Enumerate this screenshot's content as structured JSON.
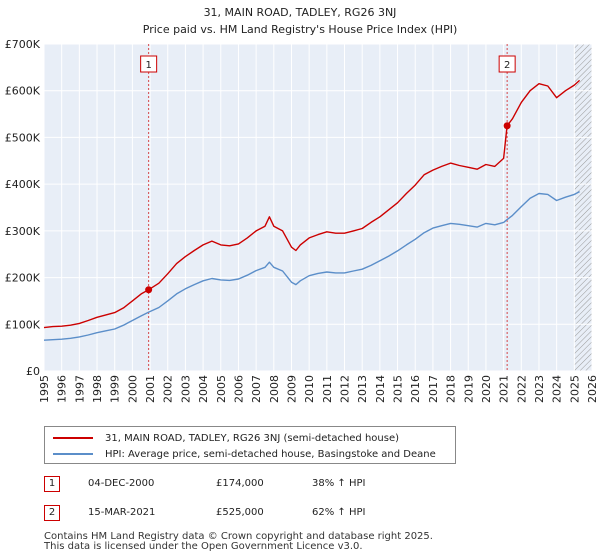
{
  "chart_data": {
    "type": "line",
    "title": "31, MAIN ROAD, TADLEY, RG26 3NJ",
    "subtitle": "Price paid vs. HM Land Registry's House Price Index (HPI)",
    "xlabel": "",
    "ylabel": "",
    "xlim": [
      1995,
      2026
    ],
    "ylim": [
      0,
      700000
    ],
    "grid": true,
    "x_ticks": [
      "1995",
      "1996",
      "1997",
      "1998",
      "1999",
      "2000",
      "2001",
      "2002",
      "2003",
      "2004",
      "2005",
      "2006",
      "2007",
      "2008",
      "2009",
      "2010",
      "2011",
      "2012",
      "2013",
      "2014",
      "2015",
      "2016",
      "2017",
      "2018",
      "2019",
      "2020",
      "2021",
      "2022",
      "2023",
      "2024",
      "2025",
      "2026"
    ],
    "y_ticks": [
      {
        "value": 0,
        "label": "£0"
      },
      {
        "value": 100000,
        "label": "£100K"
      },
      {
        "value": 200000,
        "label": "£200K"
      },
      {
        "value": 300000,
        "label": "£300K"
      },
      {
        "value": 400000,
        "label": "£400K"
      },
      {
        "value": 500000,
        "label": "£500K"
      },
      {
        "value": 600000,
        "label": "£600K"
      },
      {
        "value": 700000,
        "label": "£700K"
      }
    ],
    "series": [
      {
        "name": "31, MAIN ROAD, TADLEY, RG26 3NJ (semi-detached house)",
        "color": "#cc0000",
        "x": [
          1995.0,
          1995.5,
          1996.0,
          1996.5,
          1997.0,
          1997.5,
          1998.0,
          1998.5,
          1999.0,
          1999.5,
          2000.0,
          2000.5,
          2000.92,
          2001.5,
          2002.0,
          2002.5,
          2003.0,
          2003.5,
          2004.0,
          2004.5,
          2005.0,
          2005.5,
          2006.0,
          2006.5,
          2007.0,
          2007.5,
          2007.75,
          2008.0,
          2008.5,
          2009.0,
          2009.25,
          2009.5,
          2010.0,
          2010.5,
          2011.0,
          2011.5,
          2012.0,
          2012.5,
          2013.0,
          2013.5,
          2014.0,
          2014.5,
          2015.0,
          2015.5,
          2016.0,
          2016.5,
          2017.0,
          2017.5,
          2018.0,
          2018.5,
          2019.0,
          2019.5,
          2020.0,
          2020.5,
          2021.0,
          2021.2,
          2021.5,
          2022.0,
          2022.5,
          2023.0,
          2023.5,
          2024.0,
          2024.5,
          2025.0,
          2025.3
        ],
        "y": [
          93000,
          95000,
          96000,
          98000,
          102000,
          108000,
          115000,
          120000,
          125000,
          135000,
          150000,
          165000,
          174000,
          188000,
          208000,
          230000,
          245000,
          258000,
          270000,
          278000,
          270000,
          268000,
          272000,
          285000,
          300000,
          310000,
          330000,
          310000,
          300000,
          265000,
          258000,
          270000,
          285000,
          292000,
          298000,
          295000,
          295000,
          300000,
          305000,
          318000,
          330000,
          345000,
          360000,
          380000,
          398000,
          420000,
          430000,
          438000,
          445000,
          440000,
          436000,
          432000,
          442000,
          438000,
          455000,
          525000,
          540000,
          575000,
          600000,
          615000,
          610000,
          585000,
          600000,
          612000,
          622000
        ]
      },
      {
        "name": "HPI: Average price, semi-detached house, Basingstoke and Deane",
        "color": "#5b8ec9",
        "x": [
          1995.0,
          1995.5,
          1996.0,
          1996.5,
          1997.0,
          1997.5,
          1998.0,
          1998.5,
          1999.0,
          1999.5,
          2000.0,
          2000.5,
          2000.92,
          2001.5,
          2002.0,
          2002.5,
          2003.0,
          2003.5,
          2004.0,
          2004.5,
          2005.0,
          2005.5,
          2006.0,
          2006.5,
          2007.0,
          2007.5,
          2007.75,
          2008.0,
          2008.5,
          2009.0,
          2009.25,
          2009.5,
          2010.0,
          2010.5,
          2011.0,
          2011.5,
          2012.0,
          2012.5,
          2013.0,
          2013.5,
          2014.0,
          2014.5,
          2015.0,
          2015.5,
          2016.0,
          2016.5,
          2017.0,
          2017.5,
          2018.0,
          2018.5,
          2019.0,
          2019.5,
          2020.0,
          2020.5,
          2021.0,
          2021.2,
          2021.5,
          2022.0,
          2022.5,
          2023.0,
          2023.5,
          2024.0,
          2024.5,
          2025.0,
          2025.3
        ],
        "y": [
          66000,
          67000,
          68000,
          70000,
          73000,
          77000,
          82000,
          86000,
          90000,
          98000,
          108000,
          118000,
          126000,
          136000,
          150000,
          165000,
          176000,
          185000,
          193000,
          198000,
          195000,
          194000,
          197000,
          205000,
          215000,
          222000,
          233000,
          222000,
          214000,
          190000,
          185000,
          193000,
          204000,
          209000,
          212000,
          210000,
          210000,
          214000,
          218000,
          226000,
          236000,
          246000,
          257000,
          270000,
          282000,
          296000,
          306000,
          311000,
          316000,
          314000,
          311000,
          308000,
          316000,
          313000,
          318000,
          324000,
          333000,
          352000,
          370000,
          380000,
          378000,
          365000,
          372000,
          378000,
          384000
        ]
      }
    ],
    "transactions": [
      {
        "label": "1",
        "date": "04-DEC-2000",
        "x": 2000.92,
        "price": "£174,000",
        "value": 174000,
        "hpi": "38% ↑ HPI"
      },
      {
        "label": "2",
        "date": "15-MAR-2021",
        "x": 2021.2,
        "price": "£525,000",
        "value": 525000,
        "hpi": "62% ↑ HPI"
      }
    ],
    "hatch_from": 2025.0
  },
  "footer": {
    "line1": "Contains HM Land Registry data © Crown copyright and database right 2025.",
    "line2": "This data is licensed under the Open Government Licence v3.0."
  }
}
